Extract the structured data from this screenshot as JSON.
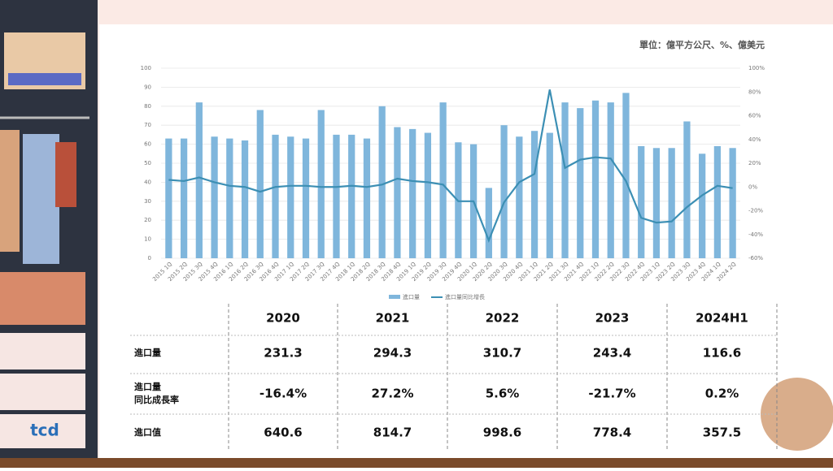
{
  "chart_data": {
    "type": "bar-line",
    "unit_note": "單位：億平方公尺、%、億美元",
    "categories": [
      "2015 1Q",
      "2015 2Q",
      "2015 3Q",
      "2015 4Q",
      "2016 1Q",
      "2016 2Q",
      "2016 3Q",
      "2016 4Q",
      "2017 1Q",
      "2017 2Q",
      "2017 3Q",
      "2017 4Q",
      "2018 1Q",
      "2018 2Q",
      "2018 3Q",
      "2018 4Q",
      "2019 1Q",
      "2019 2Q",
      "2019 3Q",
      "2019 4Q",
      "2020 1Q",
      "2020 2Q",
      "2020 3Q",
      "2020 4Q",
      "2021 1Q",
      "2021 2Q",
      "2021 3Q",
      "2021 4Q",
      "2022 1Q",
      "2022 2Q",
      "2022 3Q",
      "2022 4Q",
      "2023 1Q",
      "2023 2Q",
      "2023 3Q",
      "2023 4Q",
      "2024 1Q",
      "2024 2Q"
    ],
    "series": [
      {
        "name": "進口量",
        "type": "bar",
        "color": "#7fb6dc",
        "values": [
          63,
          63,
          82,
          64,
          63,
          62,
          78,
          65,
          64,
          63,
          78,
          65,
          65,
          63,
          80,
          69,
          68,
          66,
          82,
          61,
          60,
          37,
          70,
          64,
          67,
          66,
          82,
          79,
          83,
          82,
          87,
          59,
          58,
          58,
          72,
          55,
          59,
          58
        ]
      },
      {
        "name": "進口量同比增長",
        "type": "line",
        "axis": "y2",
        "color": "#3c8fb4",
        "values": [
          6,
          5,
          8,
          4,
          1,
          0,
          -4,
          0,
          1,
          1,
          0,
          0,
          1,
          0,
          2,
          7,
          5,
          4,
          2,
          -12,
          -12,
          -45,
          -13,
          4,
          11,
          82,
          16,
          23,
          25,
          24,
          5,
          -26,
          -30,
          -29,
          -17,
          -7,
          1,
          -1
        ]
      }
    ],
    "ylim": [
      0,
      100
    ],
    "yticks": [
      0,
      10,
      20,
      30,
      40,
      50,
      60,
      70,
      80,
      90,
      100
    ],
    "y2lim": [
      -60,
      100
    ],
    "y2ticks": [
      {
        "value": -60,
        "label": "-60%"
      },
      {
        "value": -40,
        "label": "-40%"
      },
      {
        "value": -20,
        "label": "-20%"
      },
      {
        "value": 0,
        "label": "0%"
      },
      {
        "value": 20,
        "label": "20%"
      },
      {
        "value": 40,
        "label": "40%"
      },
      {
        "value": 60,
        "label": "60%"
      },
      {
        "value": 80,
        "label": "80%"
      },
      {
        "value": 100,
        "label": "100%"
      }
    ],
    "grid": true,
    "legend": "bottom"
  },
  "table": {
    "columns": [
      "2020",
      "2021",
      "2022",
      "2023",
      "2024H1"
    ],
    "rows": [
      {
        "label": "進口量",
        "values": [
          "231.3",
          "294.3",
          "310.7",
          "243.4",
          "116.6"
        ]
      },
      {
        "label": "進口量\n同比成長率",
        "values": [
          "-16.4%",
          "27.2%",
          "5.6%",
          "-21.7%",
          "0.2%"
        ]
      },
      {
        "label": "進口值",
        "values": [
          "640.6",
          "814.7",
          "998.6",
          "778.4",
          "357.5"
        ]
      }
    ]
  }
}
